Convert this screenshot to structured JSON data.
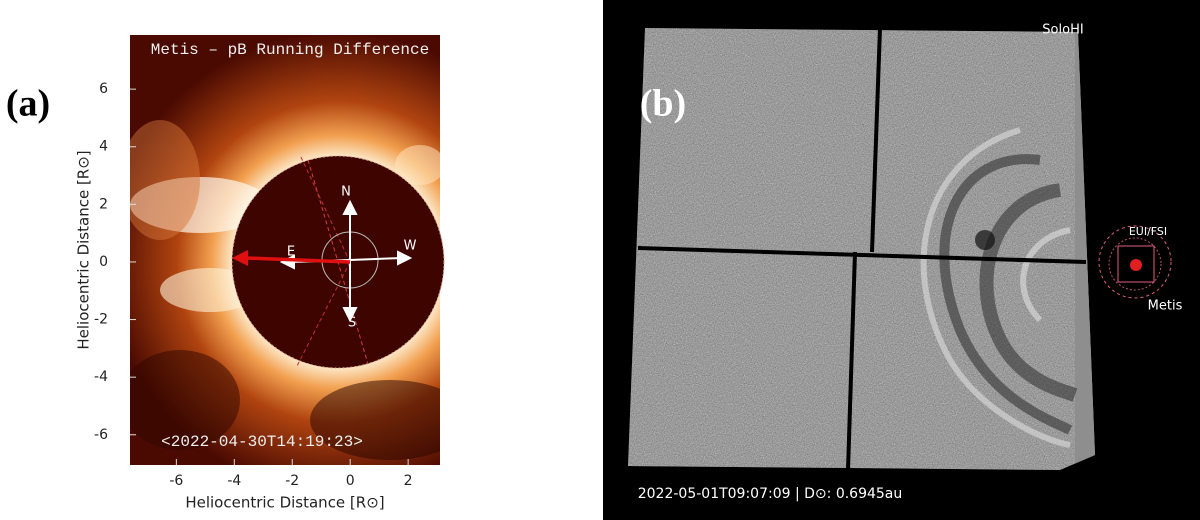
{
  "panel_a": {
    "label": "(a)",
    "title": "Metis – pB Running Difference",
    "timestamp": "<2022-04-30T14:19:23>",
    "xlabel": "Heliocentric Distance [R⊙]",
    "ylabel": "Heliocentric Distance [R⊙]",
    "xlim": [
      -7.6,
      3.1
    ],
    "ylim": [
      -7.05,
      7.88
    ],
    "xticks": [
      -6,
      -4,
      -2,
      0,
      2
    ],
    "yticks": [
      -6,
      -4,
      -2,
      0,
      2,
      4,
      6
    ],
    "compass": {
      "north": "N",
      "south": "S",
      "east": "E",
      "west": "W"
    }
  },
  "panel_b": {
    "label": "(b)",
    "instrument": "SoloHI",
    "inset_label_top": "EUI/FSI",
    "inset_label_bottom": "Metis",
    "timestamp": "2022-05-01T09:07:09 | D⊙: 0.6945au"
  }
}
